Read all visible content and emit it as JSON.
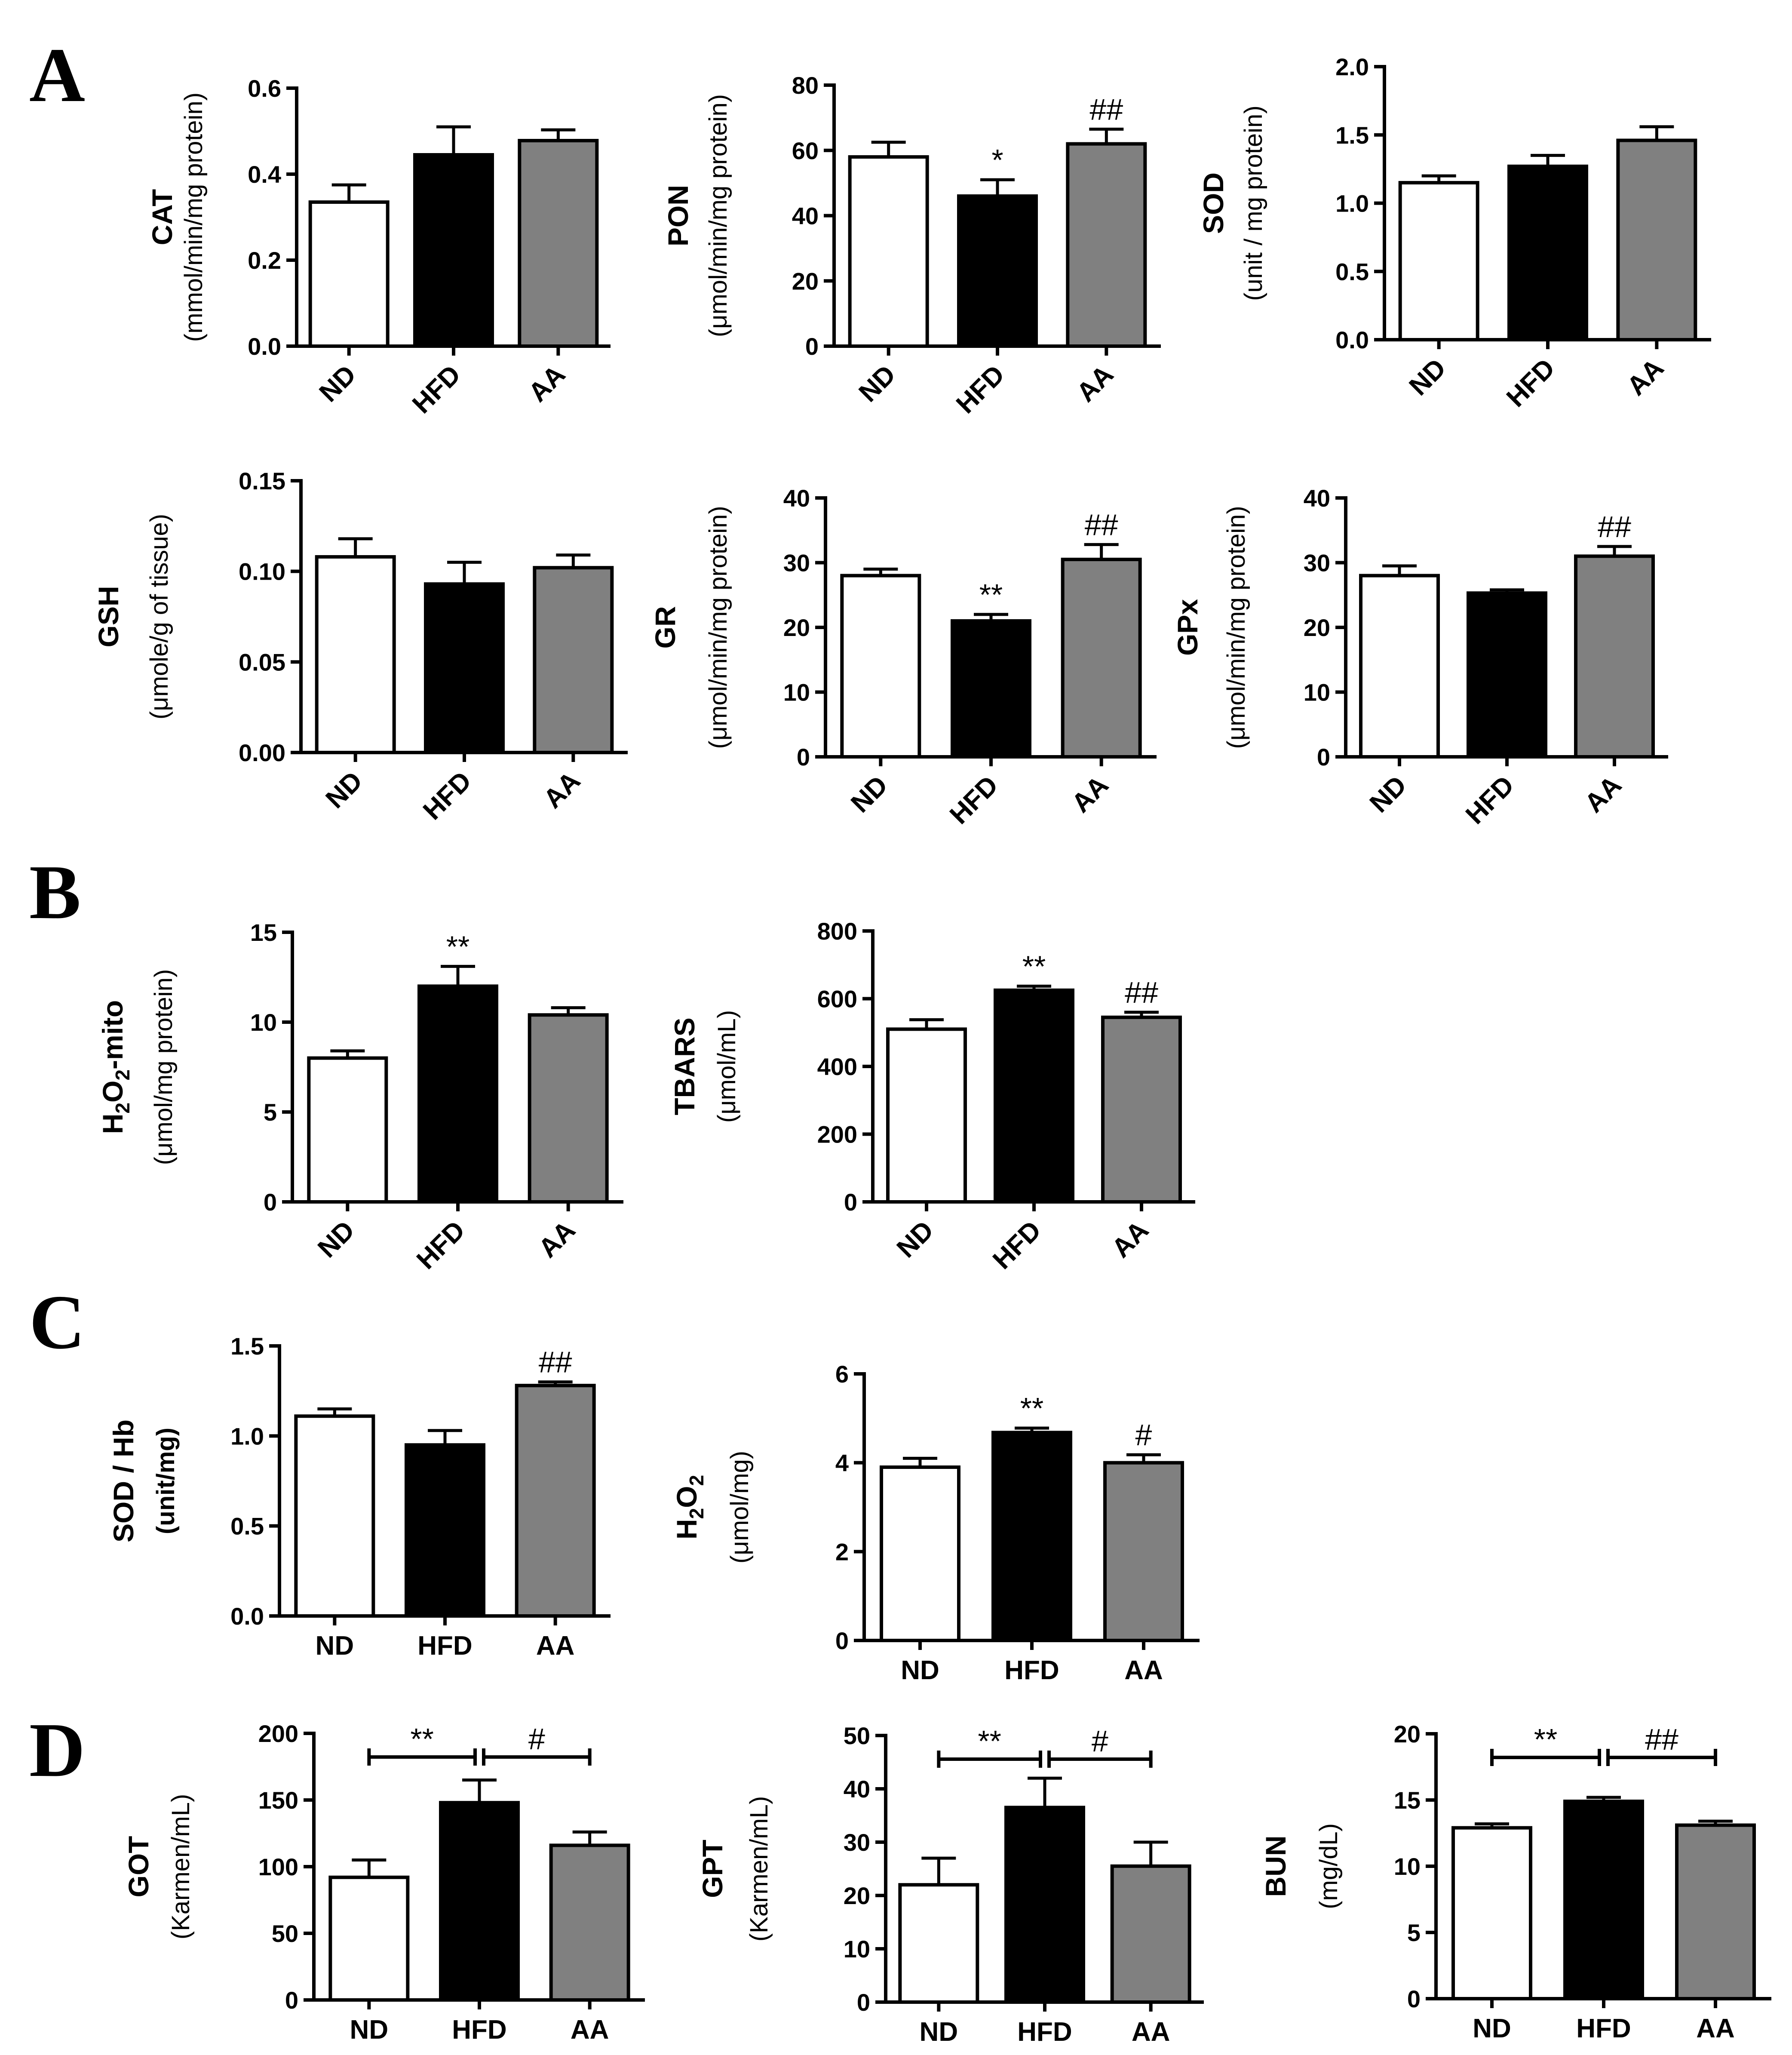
{
  "figure": {
    "panel_letters": [
      "A",
      "B",
      "C",
      "D"
    ]
  },
  "colors": {
    "ND": "#ffffff",
    "HFD": "#000000",
    "AA": "#808080",
    "axis": "#000000"
  },
  "chart_data": [
    {
      "id": "cat",
      "panel": "A",
      "type": "bar",
      "ylabel_main": "CAT",
      "ylabel_unit": "(mmol/min/mg protein)",
      "categories": [
        "ND",
        "HFD",
        "AA"
      ],
      "values": [
        0.335,
        0.445,
        0.478
      ],
      "errors": [
        0.04,
        0.065,
        0.025
      ],
      "ylim": [
        0,
        0.6
      ],
      "yticks": [
        "0.0",
        "0.2",
        "0.4",
        "0.6"
      ],
      "annotations": [
        "",
        "",
        ""
      ]
    },
    {
      "id": "pon",
      "panel": "A",
      "type": "bar",
      "ylabel_main": "PON",
      "ylabel_unit": "(μmol/min/mg protein)",
      "categories": [
        "ND",
        "HFD",
        "AA"
      ],
      "values": [
        58,
        46,
        62
      ],
      "errors": [
        4.5,
        5,
        4.5
      ],
      "ylim": [
        0,
        80
      ],
      "yticks": [
        "0",
        "20",
        "40",
        "60",
        "80"
      ],
      "annotations": [
        "",
        "*",
        "##"
      ]
    },
    {
      "id": "sod",
      "panel": "A",
      "type": "bar",
      "ylabel_main": "SOD",
      "ylabel_unit": "(unit / mg protein)",
      "categories": [
        "ND",
        "HFD",
        "AA"
      ],
      "values": [
        1.15,
        1.27,
        1.46
      ],
      "errors": [
        0.05,
        0.08,
        0.1
      ],
      "ylim": [
        0,
        2.0
      ],
      "yticks": [
        "0.0",
        "0.5",
        "1.0",
        "1.5",
        "2.0"
      ],
      "annotations": [
        "",
        "",
        ""
      ]
    },
    {
      "id": "gsh",
      "panel": "A",
      "type": "bar",
      "ylabel_main": "GSH",
      "ylabel_unit": "(μmole/g of tissue)",
      "categories": [
        "ND",
        "HFD",
        "AA"
      ],
      "values": [
        0.108,
        0.093,
        0.102
      ],
      "errors": [
        0.01,
        0.012,
        0.007
      ],
      "ylim": [
        0,
        0.15
      ],
      "yticks": [
        "0.00",
        "0.05",
        "0.10",
        "0.15"
      ],
      "annotations": [
        "",
        "",
        ""
      ]
    },
    {
      "id": "gr",
      "panel": "A",
      "type": "bar",
      "ylabel_main": "GR",
      "ylabel_unit": "(μmol/min/mg protein)",
      "categories": [
        "ND",
        "HFD",
        "AA"
      ],
      "values": [
        28,
        21,
        30.5
      ],
      "errors": [
        1,
        1,
        2.3
      ],
      "ylim": [
        0,
        40
      ],
      "yticks": [
        "0",
        "10",
        "20",
        "30",
        "40"
      ],
      "annotations": [
        "",
        "**",
        "##"
      ]
    },
    {
      "id": "gpx",
      "panel": "A",
      "type": "bar",
      "ylabel_main": "GPx",
      "ylabel_unit": "(μmol/min/mg protein)",
      "categories": [
        "ND",
        "HFD",
        "AA"
      ],
      "values": [
        28,
        25.3,
        31
      ],
      "errors": [
        1.5,
        0.5,
        1.5
      ],
      "ylim": [
        0,
        40
      ],
      "yticks": [
        "0",
        "10",
        "20",
        "30",
        "40"
      ],
      "annotations": [
        "",
        "",
        "##"
      ]
    },
    {
      "id": "h2o2mito",
      "panel": "B",
      "type": "bar",
      "ylabel_main": "H2O2-mito",
      "ylabel_unit": "(μmol/mg protein)",
      "categories": [
        "ND",
        "HFD",
        "AA"
      ],
      "values": [
        8,
        12,
        10.4
      ],
      "errors": [
        0.4,
        1.1,
        0.4
      ],
      "ylim": [
        0,
        15
      ],
      "yticks": [
        "0",
        "5",
        "10",
        "15"
      ],
      "annotations": [
        "",
        "**",
        ""
      ]
    },
    {
      "id": "tbars",
      "panel": "B",
      "type": "bar",
      "ylabel_main": "TBARS",
      "ylabel_unit": "(μmol/mL)",
      "categories": [
        "ND",
        "HFD",
        "AA"
      ],
      "values": [
        510,
        625,
        545
      ],
      "errors": [
        28,
        12,
        15
      ],
      "ylim": [
        0,
        800
      ],
      "yticks": [
        "0",
        "200",
        "400",
        "600",
        "800"
      ],
      "annotations": [
        "",
        "**",
        "##"
      ]
    },
    {
      "id": "sodhb",
      "panel": "C",
      "type": "bar",
      "ylabel_main": "SOD / Hb",
      "ylabel_unit": "(unit/mg)",
      "categories": [
        "ND",
        "HFD",
        "AA"
      ],
      "values": [
        1.11,
        0.95,
        1.28
      ],
      "errors": [
        0.04,
        0.08,
        0.02
      ],
      "ylim": [
        0,
        1.5
      ],
      "yticks": [
        "0.0",
        "0.5",
        "1.0",
        "1.5"
      ],
      "annotations": [
        "",
        "",
        "##"
      ]
    },
    {
      "id": "h2o2",
      "panel": "C",
      "type": "bar",
      "ylabel_main": "H2O2",
      "ylabel_unit": "(μmol/mg)",
      "categories": [
        "ND",
        "HFD",
        "AA"
      ],
      "values": [
        3.9,
        4.68,
        4.0
      ],
      "errors": [
        0.2,
        0.1,
        0.18
      ],
      "ylim": [
        0,
        6
      ],
      "yticks": [
        "0",
        "2",
        "4",
        "6"
      ],
      "annotations": [
        "",
        "**",
        "#"
      ]
    },
    {
      "id": "got",
      "panel": "D",
      "type": "bar",
      "ylabel_main": "GOT",
      "ylabel_unit": "(Karmen/mL)",
      "categories": [
        "ND",
        "HFD",
        "AA"
      ],
      "values": [
        92,
        148,
        116
      ],
      "errors": [
        13,
        17,
        10
      ],
      "ylim": [
        0,
        200
      ],
      "yticks": [
        "0",
        "50",
        "100",
        "150",
        "200"
      ],
      "annotations": [
        "",
        "",
        ""
      ],
      "brackets": [
        {
          "from": 0,
          "to": 1,
          "label": "**"
        },
        {
          "from": 1,
          "to": 2,
          "label": "#"
        }
      ]
    },
    {
      "id": "gpt",
      "panel": "D",
      "type": "bar",
      "ylabel_main": "GPT",
      "ylabel_unit": "(Karmen/mL)",
      "categories": [
        "ND",
        "HFD",
        "AA"
      ],
      "values": [
        22,
        36.5,
        25.5
      ],
      "errors": [
        5,
        5.5,
        4.5
      ],
      "ylim": [
        0,
        50
      ],
      "yticks": [
        "0",
        "10",
        "20",
        "30",
        "40",
        "50"
      ],
      "annotations": [
        "",
        "",
        ""
      ],
      "brackets": [
        {
          "from": 0,
          "to": 1,
          "label": "**"
        },
        {
          "from": 1,
          "to": 2,
          "label": "#"
        }
      ]
    },
    {
      "id": "bun",
      "panel": "D",
      "type": "bar",
      "ylabel_main": "BUN",
      "ylabel_unit": "(mg/dL)",
      "categories": [
        "ND",
        "HFD",
        "AA"
      ],
      "values": [
        12.9,
        14.9,
        13.1
      ],
      "errors": [
        0.3,
        0.3,
        0.3
      ],
      "ylim": [
        0,
        20
      ],
      "yticks": [
        "0",
        "5",
        "10",
        "15",
        "20"
      ],
      "annotations": [
        "",
        "",
        ""
      ],
      "brackets": [
        {
          "from": 0,
          "to": 1,
          "label": "**"
        },
        {
          "from": 1,
          "to": 2,
          "label": "##"
        }
      ]
    }
  ]
}
